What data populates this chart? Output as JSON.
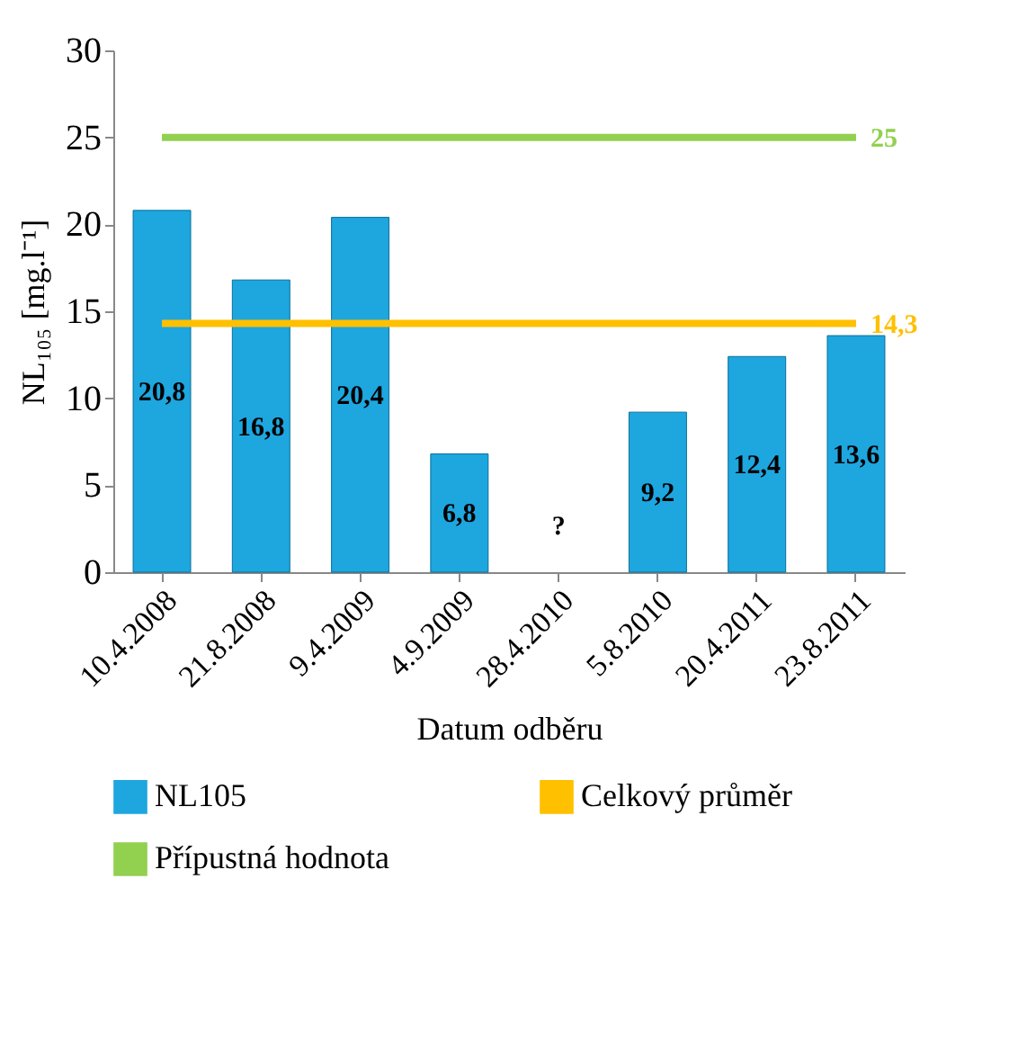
{
  "chart_data": {
    "type": "bar",
    "xlabel": "Datum odběru",
    "ylabel": "NL₁₀₅ [mg.l⁻¹]",
    "categories": [
      "10.4.2008",
      "21.8.2008",
      "9.4.2009",
      "4.9.2009",
      "28.4.2010",
      "5.8.2010",
      "20.4.2011",
      "23.8.2011"
    ],
    "series": [
      {
        "name": "NL105",
        "color": "#1ea6df",
        "values": [
          20.8,
          16.8,
          20.4,
          6.8,
          null,
          9.2,
          12.4,
          13.6
        ],
        "value_labels": [
          "20,8",
          "16,8",
          "20,4",
          "6,8",
          "?",
          "9,2",
          "12,4",
          "13,6"
        ]
      },
      {
        "name": "Celkový průměr",
        "type": "line",
        "color": "#ffc000",
        "values": [
          14.3,
          14.3,
          14.3,
          14.3,
          14.3,
          14.3,
          14.3,
          14.3
        ],
        "value_labels": [
          null,
          null,
          null,
          null,
          null,
          null,
          null,
          "14,3"
        ]
      },
      {
        "name": "Přípustná hodnota",
        "type": "line",
        "color": "#92d050",
        "values": [
          25,
          25,
          25,
          25,
          25,
          25,
          25,
          25
        ],
        "value_labels": [
          null,
          null,
          null,
          null,
          null,
          null,
          null,
          "25"
        ]
      }
    ],
    "ylim": [
      0,
      30
    ],
    "yticks": [
      0,
      5,
      10,
      15,
      20,
      25,
      30
    ],
    "grid": false,
    "legend": "bottom",
    "marker": "none",
    "line_style": "solid"
  }
}
